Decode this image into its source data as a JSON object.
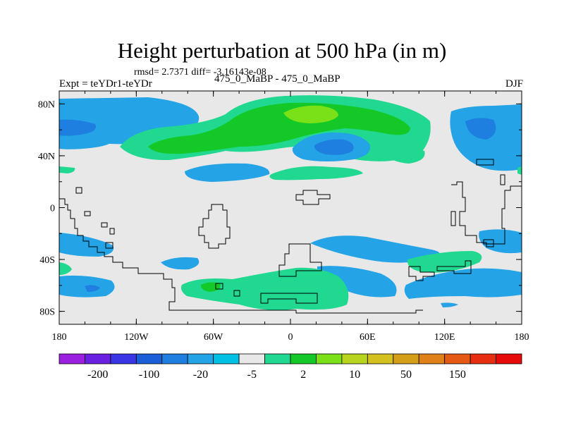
{
  "chart_data": {
    "type": "heatmap",
    "title": "Height perturbation at 500 hPa (in m)",
    "stats_label": "rmsd= 2.7371 diff= -3.16143e-08",
    "left_label": "Expt = teYDr1-teYDr",
    "center_label": "475_0_MaBP - 475_0_MaBP",
    "right_label": "DJF",
    "x_ticks": [
      "180",
      "120W",
      "60W",
      "0",
      "60E",
      "120E",
      "180"
    ],
    "y_ticks": [
      "80N",
      "40N",
      "0",
      "40S",
      "80S"
    ],
    "xlim": [
      -180,
      180
    ],
    "ylim": [
      -90,
      90
    ],
    "colorbar": {
      "labels": [
        "-200",
        "-100",
        "-20",
        "-5",
        "2",
        "10",
        "50",
        "150"
      ],
      "colors": [
        "#9b20e0",
        "#6a20e0",
        "#3a36e6",
        "#1a5fd8",
        "#1e7fe0",
        "#24a4e6",
        "#00c0e6",
        "#e8e8e8",
        "#20d890",
        "#14c828",
        "#7ae018",
        "#b8d41e",
        "#d4c01e",
        "#d49e18",
        "#e08018",
        "#e45a14",
        "#e62e10",
        "#e60a0a"
      ]
    }
  }
}
